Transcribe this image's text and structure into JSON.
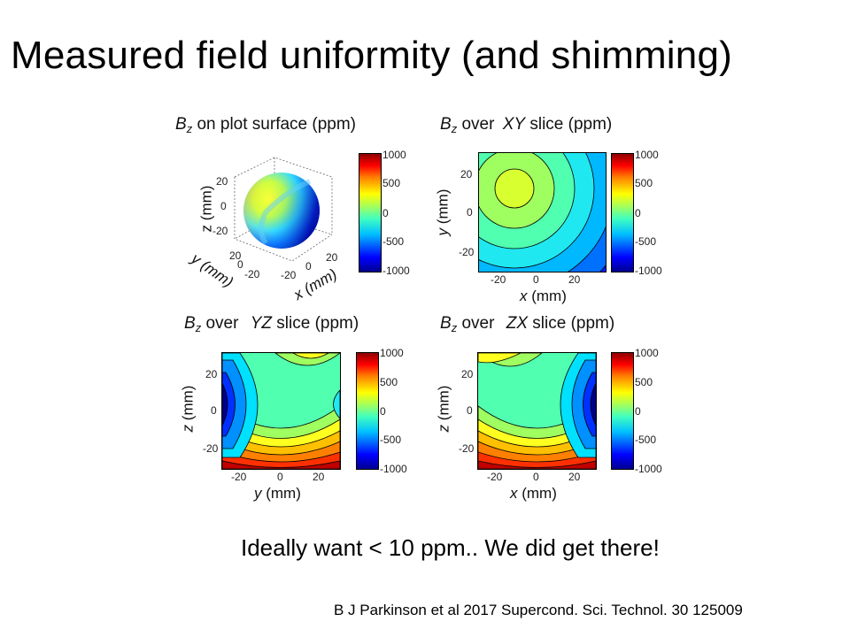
{
  "slide": {
    "title": "Measured field uniformity (and shimming)",
    "note": "Ideally want < 10 ppm.. We did get there!",
    "citation": "B J Parkinson et al 2017 Supercond. Sci. Technol. 30 125009"
  },
  "common": {
    "B": "B",
    "sub": "z",
    "units": "(ppm)",
    "over": "over"
  },
  "panels": {
    "surface": {
      "title_rest": "on plot surface (ppm)",
      "xlabel": "x (mm)",
      "ylabel": "y (mm)",
      "zlabel": "z (mm)",
      "ticks": [
        "20",
        "0",
        "-20"
      ],
      "xticks": [
        "-20",
        "0",
        "20"
      ],
      "yticks": [
        "20",
        "0",
        "-20"
      ]
    },
    "xy": {
      "slice": "XY",
      "title_tail": "slice (ppm)",
      "xlabel_var": "x",
      "xlabel_unit": " (mm)",
      "ylabel_var": "y",
      "ylabel_unit": " (mm)",
      "xticks": [
        "-20",
        "0",
        "20"
      ],
      "yticks": [
        "20",
        "0",
        "-20"
      ]
    },
    "yz": {
      "slice": "YZ",
      "title_tail": "slice (ppm)",
      "xlabel_var": "y",
      "xlabel_unit": " (mm)",
      "ylabel_var": "z",
      "ylabel_unit": " (mm)",
      "xticks": [
        "-20",
        "0",
        "20"
      ],
      "yticks": [
        "20",
        "0",
        "-20"
      ]
    },
    "zx": {
      "slice": "ZX",
      "title_tail": "slice (ppm)",
      "xlabel_var": "x",
      "xlabel_unit": " (mm)",
      "ylabel_var": "z",
      "ylabel_unit": " (mm)",
      "xticks": [
        "-20",
        "0",
        "20"
      ],
      "yticks": [
        "20",
        "0",
        "-20"
      ]
    }
  },
  "colorbar": {
    "ticks": [
      "1000",
      "500",
      "0",
      "-500",
      "-1000"
    ]
  }
}
